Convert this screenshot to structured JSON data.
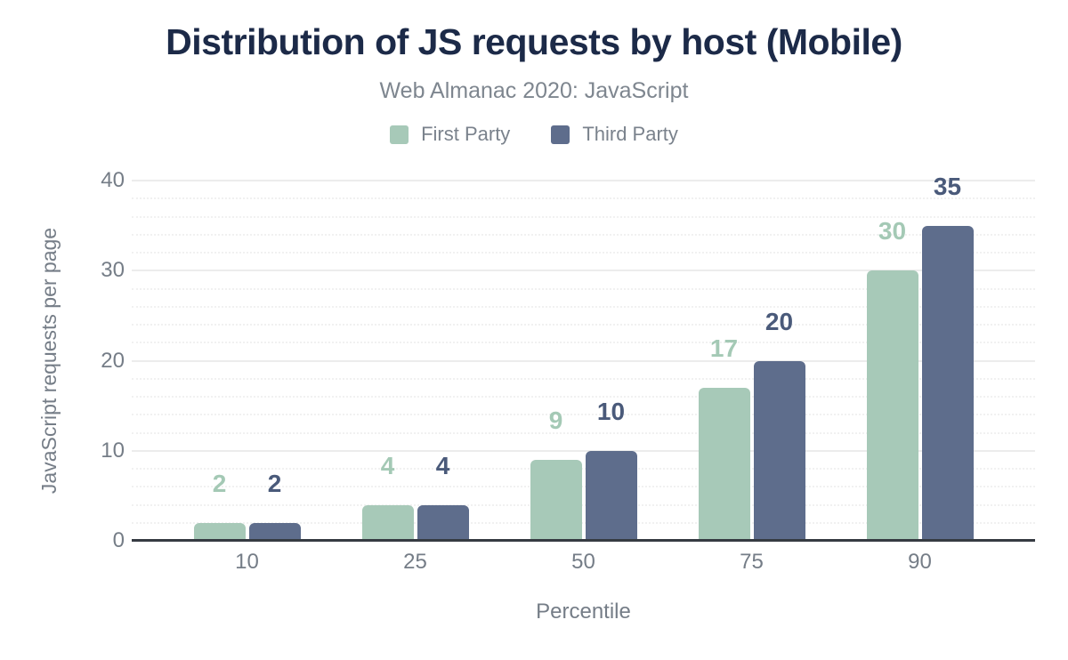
{
  "chart_data": {
    "type": "bar",
    "title": "Distribution of JS requests by host (Mobile)",
    "subtitle": "Web Almanac 2020: JavaScript",
    "categories": [
      "10",
      "25",
      "50",
      "75",
      "90"
    ],
    "series": [
      {
        "name": "First Party",
        "values": [
          2,
          4,
          9,
          17,
          30
        ],
        "color": "#a7c9b8",
        "label_color": "#a4c9b5"
      },
      {
        "name": "Third Party",
        "values": [
          2,
          4,
          10,
          20,
          35
        ],
        "color": "#5e6d8c",
        "label_color": "#4a5a7a"
      }
    ],
    "xlabel": "Percentile",
    "ylabel": "JavaScript requests per page",
    "ylim": [
      0,
      40
    ],
    "yticks": [
      0,
      10,
      20,
      30,
      40
    ],
    "minor_gridline_step": 2,
    "grid": "horizontal",
    "legend_position": "top"
  }
}
